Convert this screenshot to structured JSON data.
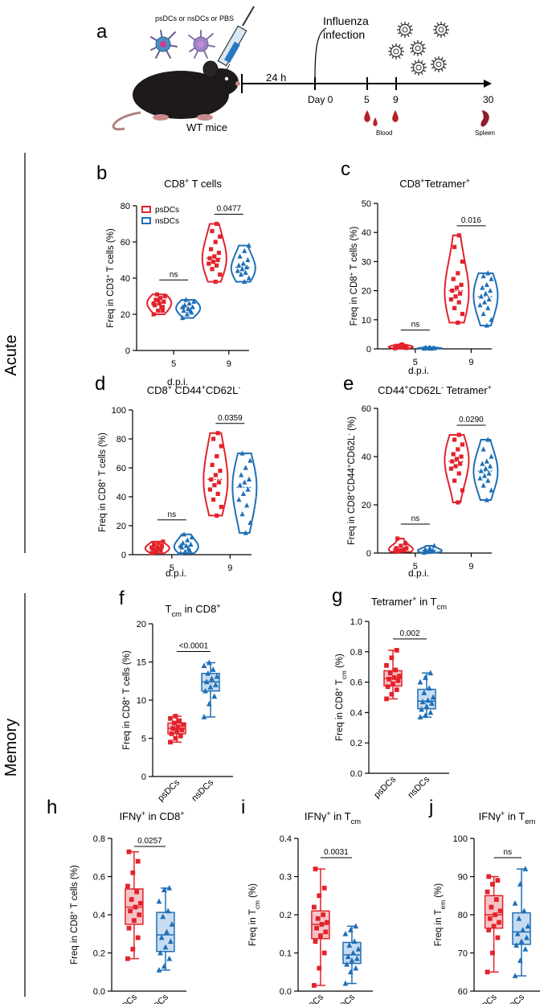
{
  "colors": {
    "red": "#e3222b",
    "blue": "#1f6fb7",
    "red_fill": "#f6c4c6",
    "blue_fill": "#c7dcf0",
    "mouse": "#1e1a1a"
  },
  "schematic": {
    "letter": "a",
    "treatment": "psDCs or nsDCs or PBS",
    "mouse_label": "WT mice",
    "interval": "24 h",
    "infection": "Influenza infection",
    "infection_lines": [
      "Influenza",
      "infection"
    ],
    "day0": "Day 0",
    "day5": "5",
    "day9": "9",
    "day30": "30",
    "blood": "Blood",
    "spleen": "Spleen"
  },
  "sections": {
    "acute": "Acute",
    "memory": "Memory"
  },
  "chart_data": [
    {
      "id": "b",
      "type": "violin",
      "letter": "b",
      "title": "CD8+ T cells",
      "title_parts": [
        [
          "CD8",
          ""
        ],
        [
          "+",
          "sup"
        ],
        [
          " T cells",
          ""
        ]
      ],
      "ylabel": "Freq in CD3+ T cells (%)",
      "ylabel_parts": [
        [
          "Freq in CD3",
          ""
        ],
        [
          "+",
          "sup"
        ],
        [
          " T cells (%)",
          ""
        ]
      ],
      "xlabel": "d.p.i.",
      "ylim": [
        0,
        80
      ],
      "yticks": [
        0,
        20,
        40,
        60,
        80
      ],
      "categories": [
        "5",
        "9"
      ],
      "legend": [
        "psDCs",
        "nsDCs"
      ],
      "series": [
        {
          "name": "psDCs",
          "values": [
            [
              20,
              22,
              24,
              25,
              26,
              27,
              28,
              29,
              30,
              31,
              24,
              26,
              28,
              22
            ],
            [
              38,
              42,
              45,
              47,
              48,
              49,
              50,
              51,
              52,
              54,
              56,
              60,
              63,
              66,
              70
            ]
          ]
        },
        {
          "name": "nsDCs",
          "values": [
            [
              18,
              20,
              21,
              22,
              23,
              24,
              25,
              26,
              27,
              28,
              22,
              24
            ],
            [
              38,
              40,
              42,
              43,
              44,
              45,
              46,
              47,
              48,
              50,
              52,
              55,
              58
            ]
          ]
        }
      ],
      "comparisons": [
        {
          "group": "5",
          "label": "ns"
        },
        {
          "group": "9",
          "label": "0.0477"
        }
      ]
    },
    {
      "id": "c",
      "type": "violin",
      "letter": "c",
      "title": "CD8+Tetramer+",
      "title_parts": [
        [
          "CD8",
          ""
        ],
        [
          "+",
          "sup"
        ],
        [
          "Tetramer",
          ""
        ],
        [
          "+",
          "sup"
        ]
      ],
      "ylabel": "Freq in CD8+ T cells (%)",
      "ylabel_parts": [
        [
          "Freq in CD8",
          ""
        ],
        [
          "+",
          "sup"
        ],
        [
          " T cells (%)",
          ""
        ]
      ],
      "xlabel": "d.p.i.",
      "ylim": [
        0,
        50
      ],
      "yticks": [
        0,
        10,
        20,
        30,
        40,
        50
      ],
      "categories": [
        "5",
        "9"
      ],
      "series": [
        {
          "name": "psDCs",
          "values": [
            [
              0.2,
              0.5,
              0.8,
              1,
              1.2,
              0.4,
              0.6,
              1.5,
              0.3,
              0.9
            ],
            [
              9,
              12,
              14,
              16,
              17,
              18,
              19,
              20,
              21,
              22,
              24,
              26,
              30,
              35,
              39
            ]
          ]
        },
        {
          "name": "nsDCs",
          "values": [
            [
              0.1,
              0.2,
              0.3,
              0.4,
              0.5,
              0.2,
              0.3,
              0.1
            ],
            [
              8,
              10,
              12,
              14,
              15,
              16,
              17,
              18,
              19,
              20,
              21,
              22,
              24,
              25,
              26
            ]
          ]
        }
      ],
      "comparisons": [
        {
          "group": "5",
          "label": "ns"
        },
        {
          "group": "9",
          "label": "0.016"
        }
      ]
    },
    {
      "id": "d",
      "type": "violin",
      "letter": "d",
      "title": "CD8+ CD44+CD62L-",
      "title_parts": [
        [
          "CD8",
          ""
        ],
        [
          "+",
          "sup"
        ],
        [
          " CD44",
          ""
        ],
        [
          "+",
          "sup"
        ],
        [
          "CD62L",
          ""
        ],
        [
          "-",
          "sup"
        ]
      ],
      "ylabel": "Freq in CD8+ T cells (%)",
      "ylabel_parts": [
        [
          "Freq in CD8",
          ""
        ],
        [
          "+",
          "sup"
        ],
        [
          " T cells (%)",
          ""
        ]
      ],
      "xlabel": "d.p.i.",
      "ylim": [
        0,
        100
      ],
      "yticks": [
        0,
        20,
        40,
        60,
        80,
        100
      ],
      "categories": [
        "5",
        "9"
      ],
      "series": [
        {
          "name": "psDCs",
          "values": [
            [
              1,
              2,
              3,
              4,
              5,
              6,
              7,
              8,
              9,
              3,
              4,
              5
            ],
            [
              27,
              33,
              38,
              42,
              45,
              48,
              50,
              52,
              55,
              58,
              62,
              68,
              75,
              80,
              84
            ]
          ]
        },
        {
          "name": "nsDCs",
          "values": [
            [
              1,
              2,
              3,
              5,
              6,
              7,
              8,
              10,
              12,
              14,
              4,
              6
            ],
            [
              15,
              22,
              28,
              34,
              38,
              42,
              45,
              48,
              50,
              52,
              55,
              60,
              65,
              70
            ]
          ]
        }
      ],
      "comparisons": [
        {
          "group": "5",
          "label": "ns"
        },
        {
          "group": "9",
          "label": "0.0359"
        }
      ]
    },
    {
      "id": "e",
      "type": "violin",
      "letter": "e",
      "title": "CD44+CD62L- Tetramer+",
      "title_parts": [
        [
          "CD44",
          ""
        ],
        [
          "+",
          "sup"
        ],
        [
          "CD62L",
          ""
        ],
        [
          "-",
          "sup"
        ],
        [
          "  Tetramer",
          ""
        ],
        [
          "+",
          "sup"
        ]
      ],
      "ylabel": "Freq in CD8+CD44+CD62L- (%)",
      "ylabel_parts": [
        [
          "Freq in CD8",
          ""
        ],
        [
          "+",
          "sup"
        ],
        [
          "CD44",
          ""
        ],
        [
          "+",
          "sup"
        ],
        [
          "CD62L",
          ""
        ],
        [
          "-",
          "sup"
        ],
        [
          " (%)",
          ""
        ]
      ],
      "xlabel": "d.p.i.",
      "ylim": [
        0,
        60
      ],
      "yticks": [
        0,
        20,
        40,
        60
      ],
      "categories": [
        "5",
        "9"
      ],
      "series": [
        {
          "name": "psDCs",
          "values": [
            [
              0.5,
              1,
              1.5,
              2,
              3,
              4,
              6,
              1,
              2,
              0.8
            ],
            [
              21,
              26,
              30,
              33,
              35,
              36,
              37,
              38,
              39,
              40,
              41,
              43,
              45,
              47,
              49
            ]
          ]
        },
        {
          "name": "nsDCs",
          "values": [
            [
              0.2,
              0.5,
              1,
              1.5,
              2,
              3,
              0.8,
              1.2
            ],
            [
              22,
              26,
              28,
              30,
              31,
              32,
              33,
              34,
              35,
              36,
              37,
              38,
              40,
              43,
              47
            ]
          ]
        }
      ],
      "comparisons": [
        {
          "group": "5",
          "label": "ns"
        },
        {
          "group": "9",
          "label": "0.0290"
        }
      ]
    },
    {
      "id": "f",
      "type": "box",
      "letter": "f",
      "title": "Tcm in CD8+",
      "title_parts": [
        [
          "T",
          ""
        ],
        [
          "cm",
          "sub"
        ],
        [
          " in CD8",
          ""
        ],
        [
          "+",
          "sup"
        ]
      ],
      "ylabel": "Freq in CD8+ T cells (%)",
      "ylabel_parts": [
        [
          "Freq in CD8",
          ""
        ],
        [
          "+",
          "sup"
        ],
        [
          " T cells (%)",
          ""
        ]
      ],
      "ylim": [
        0,
        20
      ],
      "yticks": [
        0,
        5,
        10,
        15,
        20
      ],
      "categories": [
        "psDCs",
        "nsDCs"
      ],
      "series": [
        {
          "name": "psDCs",
          "values": [
            4.5,
            5.0,
            5.3,
            5.6,
            5.9,
            6.1,
            6.3,
            6.5,
            6.8,
            7.0,
            7.3,
            7.6,
            7.9
          ]
        },
        {
          "name": "nsDCs",
          "values": [
            7.8,
            9.5,
            10.5,
            11.2,
            11.7,
            12.0,
            12.4,
            12.8,
            13.1,
            13.5,
            14.0,
            14.5,
            14.9
          ]
        }
      ],
      "comparison": "<0.0001"
    },
    {
      "id": "g",
      "type": "box",
      "letter": "g",
      "title": "Tetramer+ in Tcm",
      "title_parts": [
        [
          "Tetramer",
          ""
        ],
        [
          "+",
          "sup"
        ],
        [
          " in T",
          ""
        ],
        [
          "cm",
          "sub"
        ]
      ],
      "ylabel": "Freq in CD8+ Tcm (%)",
      "ylabel_parts": [
        [
          "Freq in CD8",
          ""
        ],
        [
          "+",
          "sup"
        ],
        [
          " T",
          ""
        ],
        [
          "cm",
          "sub"
        ],
        [
          " (%)",
          ""
        ]
      ],
      "ylim": [
        0,
        1.0
      ],
      "yticks": [
        0,
        0.2,
        0.4,
        0.6,
        0.8,
        1.0
      ],
      "categories": [
        "psDCs",
        "nsDCs"
      ],
      "series": [
        {
          "name": "psDCs",
          "values": [
            0.49,
            0.52,
            0.55,
            0.57,
            0.59,
            0.61,
            0.62,
            0.63,
            0.64,
            0.66,
            0.68,
            0.71,
            0.76,
            0.81
          ]
        },
        {
          "name": "nsDCs",
          "values": [
            0.37,
            0.38,
            0.4,
            0.42,
            0.44,
            0.46,
            0.47,
            0.48,
            0.5,
            0.53,
            0.56,
            0.6,
            0.63,
            0.66
          ]
        }
      ],
      "comparison": "0.002"
    },
    {
      "id": "h",
      "type": "box",
      "letter": "h",
      "title": "IFNγ+ in CD8+",
      "title_parts": [
        [
          "IFNγ",
          ""
        ],
        [
          "+",
          "sup"
        ],
        [
          " in CD8",
          ""
        ],
        [
          "+",
          "sup"
        ]
      ],
      "ylabel": "Freq in CD8+ T cells (%)",
      "ylabel_parts": [
        [
          "Freq in CD8",
          ""
        ],
        [
          "+",
          "sup"
        ],
        [
          " T cells (%)",
          ""
        ]
      ],
      "ylim": [
        0,
        0.8
      ],
      "yticks": [
        0,
        0.2,
        0.4,
        0.6,
        0.8
      ],
      "categories": [
        "psDCs",
        "nsDCs"
      ],
      "series": [
        {
          "name": "psDCs",
          "values": [
            0.17,
            0.22,
            0.28,
            0.33,
            0.37,
            0.4,
            0.42,
            0.44,
            0.46,
            0.48,
            0.52,
            0.55,
            0.62,
            0.68,
            0.73
          ]
        },
        {
          "name": "nsDCs",
          "values": [
            0.11,
            0.13,
            0.17,
            0.2,
            0.23,
            0.26,
            0.28,
            0.31,
            0.35,
            0.39,
            0.42,
            0.47,
            0.53,
            0.54
          ]
        }
      ],
      "comparison": "0.0257"
    },
    {
      "id": "i",
      "type": "box",
      "letter": "i",
      "title": "IFNγ+ in Tcm",
      "title_parts": [
        [
          "IFNγ",
          ""
        ],
        [
          "+",
          "sup"
        ],
        [
          " in T",
          ""
        ],
        [
          "cm",
          "sub"
        ]
      ],
      "ylabel": "Freq in Tcm (%)",
      "ylabel_parts": [
        [
          "Freq in T",
          ""
        ],
        [
          "cm",
          "sub"
        ],
        [
          " (%)",
          ""
        ]
      ],
      "ylim": [
        0,
        0.4
      ],
      "yticks": [
        0,
        0.1,
        0.2,
        0.3,
        0.4
      ],
      "categories": [
        "psDCs",
        "nsDCs"
      ],
      "series": [
        {
          "name": "psDCs",
          "values": [
            0.015,
            0.06,
            0.1,
            0.13,
            0.145,
            0.155,
            0.165,
            0.175,
            0.18,
            0.19,
            0.2,
            0.22,
            0.25,
            0.27,
            0.32
          ]
        },
        {
          "name": "nsDCs",
          "values": [
            0.02,
            0.05,
            0.06,
            0.07,
            0.08,
            0.085,
            0.09,
            0.1,
            0.11,
            0.12,
            0.13,
            0.15,
            0.16,
            0.17
          ]
        }
      ],
      "comparison": "0.0031"
    },
    {
      "id": "j",
      "type": "box",
      "letter": "j",
      "title": "IFNγ+ in Tem",
      "title_parts": [
        [
          "IFNγ",
          ""
        ],
        [
          "+",
          "sup"
        ],
        [
          " in T",
          ""
        ],
        [
          "em",
          "sub"
        ]
      ],
      "ylabel": "Freq in Tem (%)",
      "ylabel_parts": [
        [
          "Freq in T",
          ""
        ],
        [
          "em",
          "sub"
        ],
        [
          " (%)",
          ""
        ]
      ],
      "ylim": [
        60,
        100
      ],
      "yticks": [
        60,
        70,
        80,
        90,
        100
      ],
      "categories": [
        "psDCs",
        "nsDCs"
      ],
      "series": [
        {
          "name": "psDCs",
          "values": [
            65,
            70,
            74,
            76,
            77,
            78,
            79,
            80,
            81,
            82,
            84,
            86,
            88,
            89,
            90
          ]
        },
        {
          "name": "nsDCs",
          "values": [
            64,
            68,
            71,
            72,
            73,
            74,
            75,
            76,
            77,
            79,
            81,
            83,
            88,
            92
          ]
        }
      ],
      "comparison": "ns"
    }
  ]
}
